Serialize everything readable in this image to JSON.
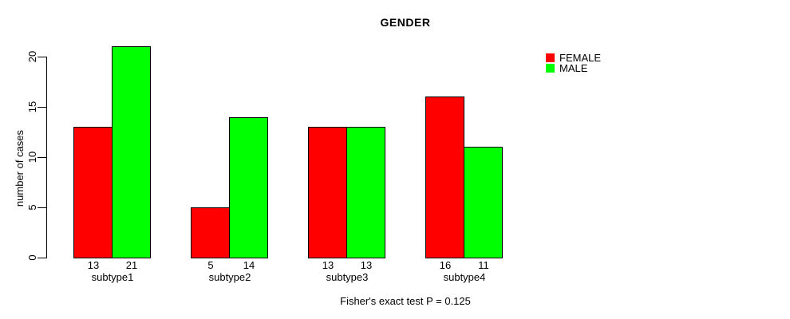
{
  "chart_data": {
    "type": "bar",
    "title": "GENDER",
    "ylabel": "number of cases",
    "xlabel": "",
    "footnote": "Fisher's exact test P = 0.125",
    "categories": [
      "subtype1",
      "subtype2",
      "subtype3",
      "subtype4"
    ],
    "series": [
      {
        "name": "FEMALE",
        "color": "#ff0000",
        "values": [
          13,
          5,
          13,
          16
        ]
      },
      {
        "name": "MALE",
        "color": "#00ff00",
        "values": [
          21,
          14,
          13,
          11
        ]
      }
    ],
    "yticks": [
      0,
      5,
      10,
      15,
      20
    ],
    "ylim": [
      0,
      21
    ],
    "legend_position": "top-right",
    "grid": false,
    "show_value_labels": true
  },
  "colors": {
    "background": "#ffffff",
    "axis": "#000000",
    "bar_border": "#000000"
  }
}
